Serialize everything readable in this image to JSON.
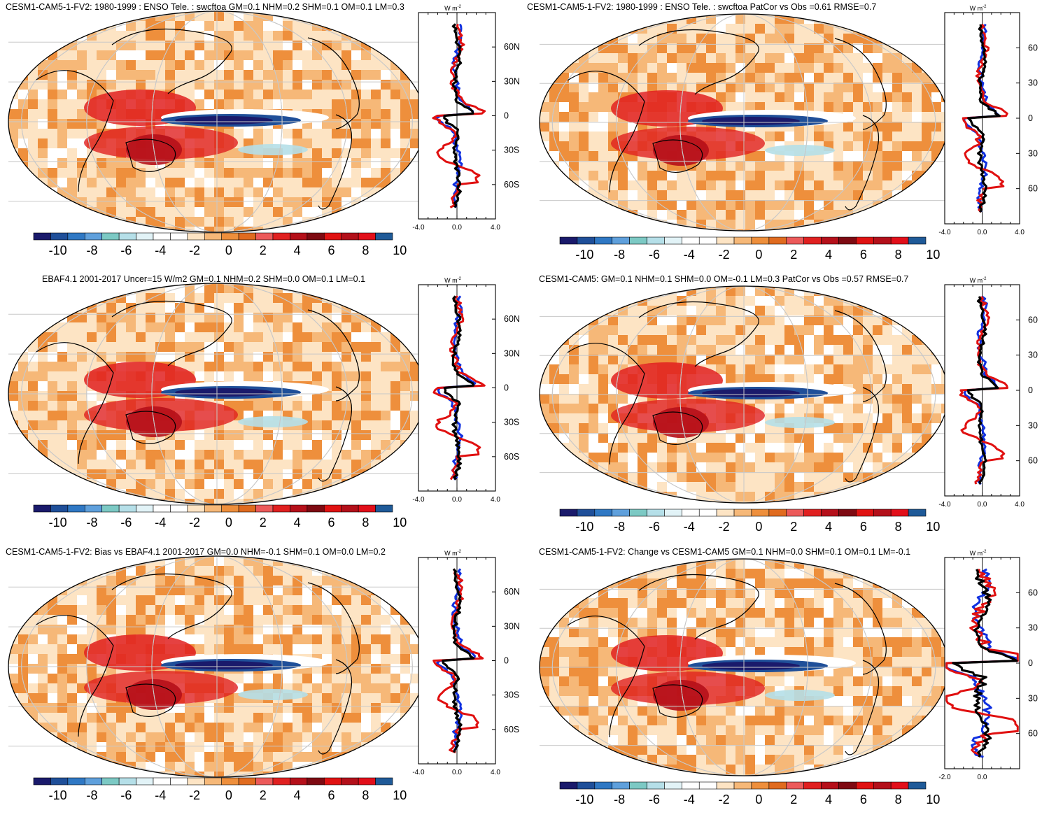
{
  "colors": {
    "colorbar": [
      "#1a1a6b",
      "#1f4f99",
      "#2f78c4",
      "#5fa0dc",
      "#7cc9c4",
      "#b5dfe8",
      "#e2f3f7",
      "#ffffff",
      "#ffffff",
      "#fde4c4",
      "#f6b878",
      "#ee8f3c",
      "#e06b1f",
      "#ec5a5a",
      "#e02020",
      "#b5101a",
      "#7e0a12",
      "#e01212",
      "#b3101a",
      "#e20f1a",
      "#1f5a98"
    ],
    "ocean_white": "#ffffff",
    "land_outline": "#000000",
    "zm_model": "#000000",
    "zm_obs": "#e01010",
    "zm_ref": "#1030e0"
  },
  "colorbar_ticks": [
    "-10",
    "-8",
    "-6",
    "-4",
    "-2",
    "0",
    "2",
    "4",
    "6",
    "8",
    "10"
  ],
  "zm_unit": "W m",
  "zm_unit_exp": "-2",
  "panels": [
    {
      "title": "CESM1-CAM5-1-FV2: 1980-1999 : ENSO Tele. : swcftoa GM=0.1 NHM=0.2 SHM=0.1 OM=0.1 LM=0.3",
      "lat_ticks": [
        "60N",
        "30N",
        "0",
        "30S",
        "60S"
      ],
      "x_ticks": [
        "-4.0",
        "0.0",
        "4.0"
      ]
    },
    {
      "title": "CESM1-CAM5-1-FV2: 1980-1999 : ENSO Tele. : swcftoa PatCor vs Obs =0.61 RMSE=0.7",
      "lat_ticks": [
        "60",
        "30",
        "0",
        "30",
        "60"
      ],
      "x_ticks": [
        "-4.0",
        "0.0",
        "4.0"
      ]
    },
    {
      "title": "EBAF4.1 2001-2017 Uncer=15 W/m2 GM=0.1 NHM=0.2 SHM=0.0 OM=0.1 LM=0.1",
      "lat_ticks": [
        "60N",
        "30N",
        "0",
        "30S",
        "60S"
      ],
      "x_ticks": [
        "-4.0",
        "0.0",
        "4.0"
      ]
    },
    {
      "title": "CESM1-CAM5: GM=0.1 NHM=0.1 SHM=0.0 OM=-0.1 LM=0.3 PatCor vs Obs =0.57 RMSE=0.7",
      "lat_ticks": [
        "60",
        "30",
        "0",
        "30",
        "60"
      ],
      "x_ticks": [
        "-4.0",
        "0.0",
        "4.0"
      ]
    },
    {
      "title": "CESM1-CAM5-1-FV2: Bias vs EBAF4.1 2001-2017 GM=0.0 NHM=-0.1 SHM=0.1 OM=0.0 LM=0.2",
      "lat_ticks": [
        "60N",
        "30N",
        "0",
        "30S",
        "60S"
      ],
      "x_ticks": [
        "-4.0",
        "0.0",
        "4.0"
      ]
    },
    {
      "title": "CESM1-CAM5-1-FV2: Change vs CESM1-CAM5 GM=0.1 NHM=0.0 SHM=0.1 OM=0.1 LM=-0.1",
      "lat_ticks": [
        "60",
        "30",
        "0",
        "30",
        "60"
      ],
      "x_ticks": [
        "-2.0",
        "0.0"
      ]
    }
  ],
  "chart_data": {
    "type": "heatmap",
    "colorbar_ticks": [
      -10,
      -8,
      -6,
      -4,
      -2,
      0,
      2,
      4,
      6,
      8,
      10
    ],
    "zonal_mean_lat_ticks": [
      60,
      30,
      0,
      -30,
      -60
    ],
    "zonal_mean_ranges": [
      [
        -4,
        4
      ],
      [
        -4,
        4
      ],
      [
        -4,
        4
      ],
      [
        -4,
        4
      ],
      [
        -4,
        4
      ],
      [
        -2,
        2
      ]
    ]
  }
}
